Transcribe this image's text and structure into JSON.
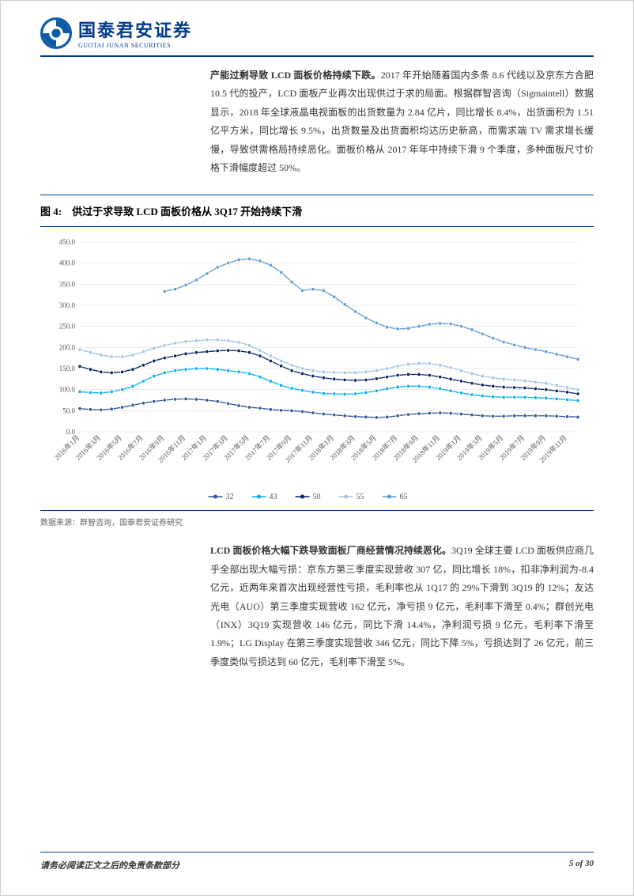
{
  "header": {
    "company_cn": "国泰君安证券",
    "company_en": "GUOTAI JUNAN SECURITIES",
    "logo_color": "#0d5aa7"
  },
  "paragraph1": {
    "lead": "产能过剩导致 LCD 面板价格持续下跌。",
    "body": "2017 年开始随着国内多条 8.6 代线以及京东方合肥 10.5 代的投产，LCD 面板产业再次出现供过于求的局面。根据群智咨询（Sigmaintell）数据显示，2018 年全球液晶电视面板的出货数量为 2.84 亿片，同比增长 8.4%，出货面积为 1.51 亿平方米，同比增长 9.5%，出货数量及出货面积均达历史新高，而需求端 TV 需求增长缓慢，导致供需格局持续恶化。面板价格从 2017 年年中持续下滑 9 个季度，多种面板尺寸价格下滑幅度超过 50%。"
  },
  "figure": {
    "label": "图 4:",
    "title": "供过于求导致 LCD 面板价格从 3Q17 开始持续下滑",
    "source": "数据来源：群智咨询，国泰君安证券研究",
    "chart": {
      "type": "line",
      "background_color": "#ffffff",
      "grid_color": "#d9d9d9",
      "ylim": [
        0,
        450
      ],
      "ytick_step": 50,
      "yticks": [
        "0.0",
        "50.0",
        "100.0",
        "150.0",
        "200.0",
        "250.0",
        "300.0",
        "350.0",
        "400.0",
        "450.0"
      ],
      "x_categories": [
        "2016年1月",
        "2016年3月",
        "2016年5月",
        "2016年7月",
        "2016年9月",
        "2016年11月",
        "2017年1月",
        "2017年3月",
        "2017年5月",
        "2017年7月",
        "2017年9月",
        "2017年11月",
        "2018年1月",
        "2018年3月",
        "2018年5月",
        "2018年7月",
        "2018年9月",
        "2018年11月",
        "2019年1月",
        "2019年3月",
        "2019年5月",
        "2019年7月",
        "2019年9月",
        "2019年11月"
      ],
      "x_tick_interval_shown": 1,
      "series": [
        {
          "name": "32",
          "color": "#2f5597",
          "marker": "circle",
          "values": [
            55,
            53,
            52,
            54,
            58,
            63,
            68,
            72,
            75,
            77,
            78,
            77,
            75,
            72,
            67,
            62,
            58,
            56,
            53,
            51,
            50,
            48,
            45,
            42,
            40,
            38,
            36,
            35,
            34,
            35,
            38,
            41,
            43,
            44,
            45,
            44,
            42,
            40,
            38,
            37,
            37,
            38,
            38,
            38,
            38,
            37,
            36,
            35
          ]
        },
        {
          "name": "43",
          "color": "#00b0f0",
          "marker": "circle",
          "values": [
            95,
            93,
            92,
            95,
            100,
            108,
            120,
            132,
            140,
            145,
            148,
            150,
            150,
            148,
            145,
            142,
            138,
            130,
            120,
            110,
            103,
            98,
            94,
            91,
            90,
            89,
            90,
            93,
            97,
            102,
            106,
            108,
            108,
            106,
            102,
            97,
            92,
            88,
            85,
            83,
            82,
            82,
            82,
            81,
            80,
            78,
            76,
            74
          ]
        },
        {
          "name": "50",
          "color": "#002060",
          "marker": "circle",
          "values": [
            155,
            148,
            142,
            140,
            142,
            148,
            158,
            168,
            175,
            180,
            185,
            188,
            190,
            192,
            193,
            192,
            188,
            180,
            168,
            156,
            145,
            138,
            132,
            128,
            125,
            123,
            122,
            123,
            126,
            130,
            134,
            136,
            136,
            134,
            130,
            125,
            120,
            115,
            111,
            108,
            106,
            105,
            104,
            102,
            100,
            97,
            94,
            90
          ]
        },
        {
          "name": "55",
          "color": "#9dc3e6",
          "marker": "circle",
          "values": [
            195,
            188,
            182,
            178,
            178,
            182,
            190,
            198,
            205,
            210,
            214,
            216,
            218,
            218,
            216,
            212,
            205,
            193,
            180,
            168,
            158,
            150,
            145,
            142,
            141,
            140,
            140,
            142,
            145,
            150,
            156,
            160,
            162,
            162,
            158,
            152,
            145,
            138,
            132,
            128,
            125,
            123,
            121,
            118,
            115,
            110,
            105,
            100
          ]
        },
        {
          "name": "65",
          "color": "#5b9bd5",
          "marker": "circle",
          "values": [
            null,
            null,
            null,
            null,
            null,
            null,
            null,
            null,
            333,
            338,
            348,
            360,
            375,
            390,
            400,
            408,
            410,
            405,
            395,
            378,
            355,
            335,
            338,
            335,
            320,
            302,
            285,
            270,
            258,
            248,
            244,
            245,
            250,
            255,
            257,
            256,
            250,
            242,
            232,
            222,
            213,
            206,
            200,
            195,
            190,
            184,
            178,
            172
          ]
        }
      ],
      "n_points": 48,
      "legend_position": "bottom"
    }
  },
  "paragraph2": {
    "lead": "LCD 面板价格大幅下跌导致面板厂商经营情况持续恶化。",
    "body": "3Q19 全球主要 LCD 面板供应商几乎全部出现大幅亏损：京东方第三季度实现营收 307 亿，同比增长 18%，扣非净利润为-8.4 亿元，近两年来首次出现经营性亏损，毛利率也从 1Q17 的 29%下滑到 3Q19 的 12%；友达光电（AUO）第三季度实现营收 162 亿元，净亏损 9 亿元，毛利率下滑至 0.4%；群创光电（INX）3Q19 实现营收 146 亿元，同比下滑 14.4%，净利润亏损 9 亿元，毛利率下滑至 1.9%；LG Display 在第三季度实现营收 346 亿元，同比下降 5%，亏损达到了 26 亿元，前三季度类似亏损达到 60 亿元，毛利率下滑至 5%。"
  },
  "footer": {
    "disclaimer": "请务必阅读正文之后的免责条款部分",
    "page": "5 of 30"
  }
}
